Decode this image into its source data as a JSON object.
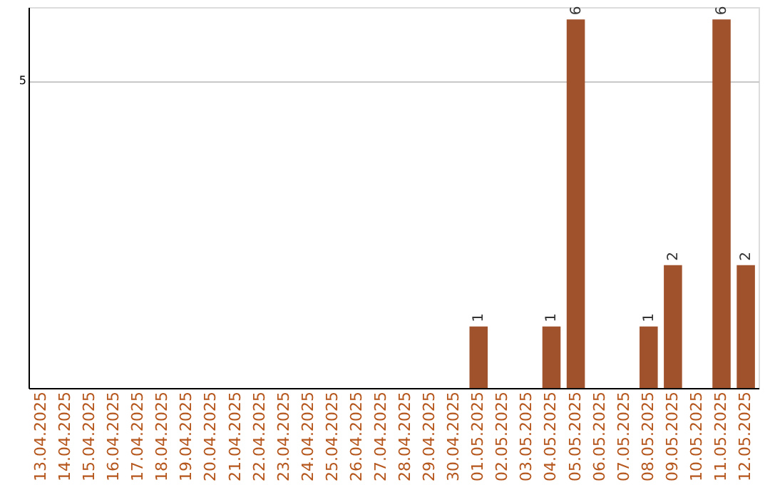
{
  "chart_data": {
    "type": "bar",
    "categories": [
      "13.04.2025",
      "14.04.2025",
      "15.04.2025",
      "16.04.2025",
      "17.04.2025",
      "18.04.2025",
      "19.04.2025",
      "20.04.2025",
      "21.04.2025",
      "22.04.2025",
      "23.04.2025",
      "24.04.2025",
      "25.04.2025",
      "26.04.2025",
      "27.04.2025",
      "28.04.2025",
      "29.04.2025",
      "30.04.2025",
      "01.05.2025",
      "02.05.2025",
      "03.05.2025",
      "04.05.2025",
      "05.05.2025",
      "06.05.2025",
      "07.05.2025",
      "08.05.2025",
      "09.05.2025",
      "10.05.2025",
      "11.05.2025",
      "12.05.2025"
    ],
    "values": [
      null,
      null,
      null,
      null,
      null,
      null,
      null,
      null,
      null,
      null,
      null,
      null,
      null,
      null,
      null,
      null,
      null,
      null,
      1,
      null,
      null,
      1,
      6,
      null,
      null,
      1,
      2,
      null,
      6,
      2
    ],
    "color": "#a0522d",
    "ylim": [
      0,
      6.2
    ],
    "yticks": [
      5
    ],
    "grid": "y",
    "data_labels": true
  }
}
